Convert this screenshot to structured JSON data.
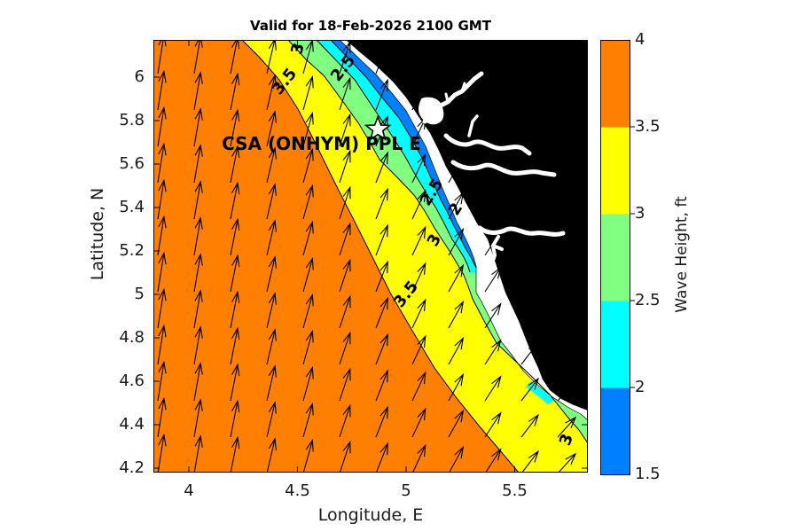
{
  "title": "Valid for 18-Feb-2026 2100 GMT",
  "axes": {
    "xlabel": "Longitude, E",
    "ylabel": "Latitude, N",
    "xticks": [
      "4",
      "4.5",
      "5",
      "5.5"
    ],
    "yticks": [
      "6",
      "5.8",
      "5.6",
      "5.4",
      "5.2",
      "5",
      "4.8",
      "4.6",
      "4.4",
      "4.2"
    ]
  },
  "colorbar": {
    "label": "Wave Height, ft",
    "ticks": [
      "4",
      "3.5",
      "3",
      "2.5",
      "2",
      "1.5"
    ],
    "colors": [
      "#FF8000",
      "#FFFF00",
      "#80FF80",
      "#00FFFF",
      "#0080FF"
    ]
  },
  "site_marker": {
    "label": "CSA (ONHYM) PPL E",
    "symbol": "white-star",
    "lon": 4.87,
    "lat": 5.76,
    "label_lon": 4.61,
    "label_lat": 5.695
  },
  "contour_labels": [
    {
      "text": "3",
      "lon": 4.5,
      "lat": 6.13,
      "rot": -75
    },
    {
      "text": "2.5",
      "lon": 4.71,
      "lat": 6.04,
      "rot": -52
    },
    {
      "text": "3.5",
      "lon": 4.44,
      "lat": 5.98,
      "rot": -52
    },
    {
      "text": "2.5",
      "lon": 5.12,
      "lat": 5.47,
      "rot": -58
    },
    {
      "text": "2",
      "lon": 5.23,
      "lat": 5.39,
      "rot": -58
    },
    {
      "text": "3",
      "lon": 5.13,
      "lat": 5.25,
      "rot": -62
    },
    {
      "text": "3.5",
      "lon": 5.0,
      "lat": 5.0,
      "rot": -52
    },
    {
      "text": "3",
      "lon": 5.74,
      "lat": 4.33,
      "rot": -70
    }
  ],
  "chart_data": {
    "type": "filled-contour-map",
    "title": "Valid for 18-Feb-2026 2100 GMT",
    "xlabel": "Longitude, E",
    "ylabel": "Latitude, N",
    "xlim": [
      3.85,
      5.85
    ],
    "ylim": [
      4.17,
      6.17
    ],
    "xticks": [
      4,
      4.5,
      5,
      5.5
    ],
    "yticks": [
      6,
      5.8,
      5.6,
      5.4,
      5.2,
      5,
      4.8,
      4.6,
      4.4,
      4.2
    ],
    "colorbar": {
      "label": "Wave Height, ft",
      "range": [
        1.5,
        4
      ],
      "levels": [
        1.5,
        2,
        2.5,
        3,
        3.5,
        4
      ]
    },
    "bands_ft": [
      {
        "range": [
          3.5,
          4.0
        ],
        "color": "#FF8000",
        "region": "offshore southwest, dominant"
      },
      {
        "range": [
          3.0,
          3.5
        ],
        "color": "#FFFF00",
        "region": "mid band paralleling coast"
      },
      {
        "range": [
          2.5,
          3.0
        ],
        "color": "#80FF80",
        "region": "nearshore band"
      },
      {
        "range": [
          2.0,
          2.5
        ],
        "color": "#00FFFF",
        "region": "narrow band at coast"
      },
      {
        "range": [
          1.5,
          2.0
        ],
        "color": "#0080FF",
        "region": "thin strip against northern coast"
      }
    ],
    "labeled_contours_ft": [
      2,
      2.5,
      3,
      3.5
    ],
    "gradient": "wave height decreases from >3.5 ft offshore (SW) to <2 ft at the NE coast",
    "quiver": {
      "meaning": "wave direction arrows, pointing NNE toward coast, veering NE nearshore",
      "cols": 12,
      "rows": 12,
      "lean_deg_offshore": 9,
      "lean_deg_nearshore": 42
    },
    "marker": {
      "label": "CSA (ONHYM) PPL E",
      "lon": 4.87,
      "lat": 5.76,
      "symbol": "star"
    },
    "land": "black landmass in northeast with white rivers and estuaries; white surf strip along coastline"
  }
}
